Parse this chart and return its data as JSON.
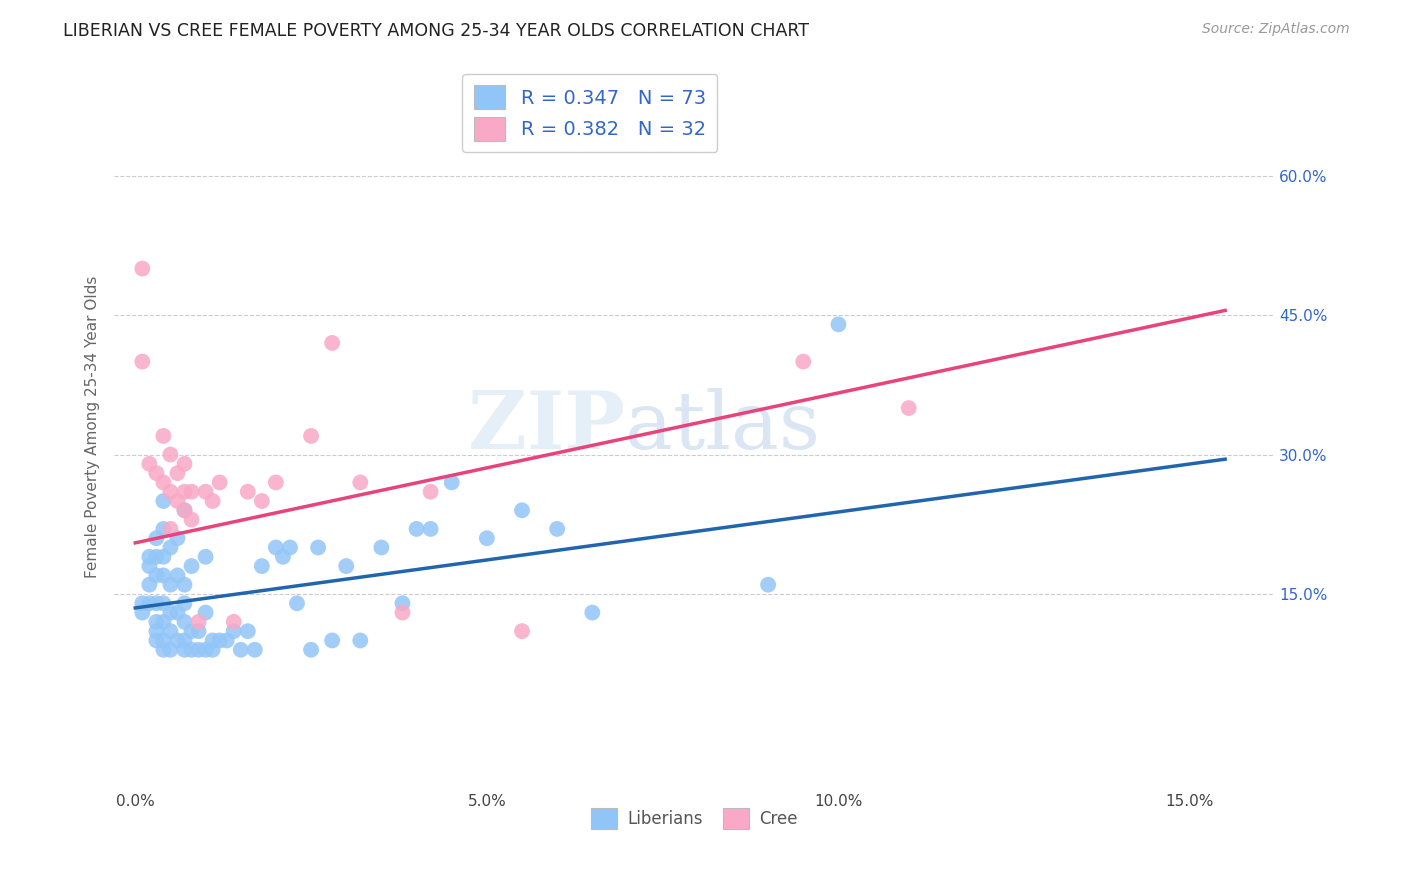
{
  "title": "LIBERIAN VS CREE FEMALE POVERTY AMONG 25-34 YEAR OLDS CORRELATION CHART",
  "source": "Source: ZipAtlas.com",
  "ylabel": "Female Poverty Among 25-34 Year Olds",
  "xlabel_ticks": [
    "0.0%",
    "5.0%",
    "10.0%",
    "15.0%"
  ],
  "xlabel_vals": [
    0.0,
    0.05,
    0.1,
    0.15
  ],
  "ylabel_ticks": [
    "15.0%",
    "30.0%",
    "45.0%",
    "60.0%"
  ],
  "ylabel_vals": [
    0.15,
    0.3,
    0.45,
    0.6
  ],
  "xlim": [
    -0.003,
    0.162
  ],
  "ylim": [
    -0.06,
    0.72
  ],
  "liberian_color": "#92c5f7",
  "cree_color": "#f9a8c5",
  "liberian_R": 0.347,
  "liberian_N": 73,
  "cree_R": 0.382,
  "cree_N": 32,
  "liberian_line_color": "#2166ac",
  "cree_line_color": "#e8437a",
  "watermark_part1": "ZIP",
  "watermark_part2": "atlas",
  "grid_color": "#cccccc",
  "background_color": "#ffffff",
  "legend_color_text": "#3366cc",
  "liberian_x": [
    0.001,
    0.001,
    0.002,
    0.002,
    0.002,
    0.002,
    0.003,
    0.003,
    0.003,
    0.003,
    0.003,
    0.003,
    0.003,
    0.004,
    0.004,
    0.004,
    0.004,
    0.004,
    0.004,
    0.004,
    0.004,
    0.005,
    0.005,
    0.005,
    0.005,
    0.005,
    0.006,
    0.006,
    0.006,
    0.006,
    0.007,
    0.007,
    0.007,
    0.007,
    0.007,
    0.007,
    0.008,
    0.008,
    0.008,
    0.009,
    0.009,
    0.01,
    0.01,
    0.01,
    0.011,
    0.011,
    0.012,
    0.013,
    0.014,
    0.015,
    0.016,
    0.017,
    0.018,
    0.02,
    0.021,
    0.022,
    0.023,
    0.025,
    0.026,
    0.028,
    0.03,
    0.032,
    0.035,
    0.038,
    0.04,
    0.042,
    0.045,
    0.05,
    0.055,
    0.06,
    0.065,
    0.09,
    0.1
  ],
  "liberian_y": [
    0.13,
    0.14,
    0.14,
    0.16,
    0.18,
    0.19,
    0.1,
    0.11,
    0.12,
    0.14,
    0.17,
    0.19,
    0.21,
    0.09,
    0.1,
    0.12,
    0.14,
    0.17,
    0.19,
    0.22,
    0.25,
    0.09,
    0.11,
    0.13,
    0.16,
    0.2,
    0.1,
    0.13,
    0.17,
    0.21,
    0.09,
    0.1,
    0.12,
    0.14,
    0.16,
    0.24,
    0.09,
    0.11,
    0.18,
    0.09,
    0.11,
    0.09,
    0.13,
    0.19,
    0.09,
    0.1,
    0.1,
    0.1,
    0.11,
    0.09,
    0.11,
    0.09,
    0.18,
    0.2,
    0.19,
    0.2,
    0.14,
    0.09,
    0.2,
    0.1,
    0.18,
    0.1,
    0.2,
    0.14,
    0.22,
    0.22,
    0.27,
    0.21,
    0.24,
    0.22,
    0.13,
    0.16,
    0.44
  ],
  "cree_x": [
    0.001,
    0.001,
    0.002,
    0.003,
    0.004,
    0.004,
    0.005,
    0.005,
    0.005,
    0.006,
    0.006,
    0.007,
    0.007,
    0.007,
    0.008,
    0.008,
    0.009,
    0.01,
    0.011,
    0.012,
    0.014,
    0.016,
    0.018,
    0.02,
    0.025,
    0.028,
    0.032,
    0.038,
    0.042,
    0.055,
    0.095,
    0.11
  ],
  "cree_y": [
    0.5,
    0.4,
    0.29,
    0.28,
    0.27,
    0.32,
    0.22,
    0.26,
    0.3,
    0.25,
    0.28,
    0.24,
    0.26,
    0.29,
    0.23,
    0.26,
    0.12,
    0.26,
    0.25,
    0.27,
    0.12,
    0.26,
    0.25,
    0.27,
    0.32,
    0.42,
    0.27,
    0.13,
    0.26,
    0.11,
    0.4,
    0.35
  ],
  "lib_line_x0": 0.0,
  "lib_line_y0": 0.135,
  "lib_line_x1": 0.155,
  "lib_line_y1": 0.295,
  "cree_line_x0": 0.0,
  "cree_line_y0": 0.205,
  "cree_line_x1": 0.155,
  "cree_line_y1": 0.455
}
